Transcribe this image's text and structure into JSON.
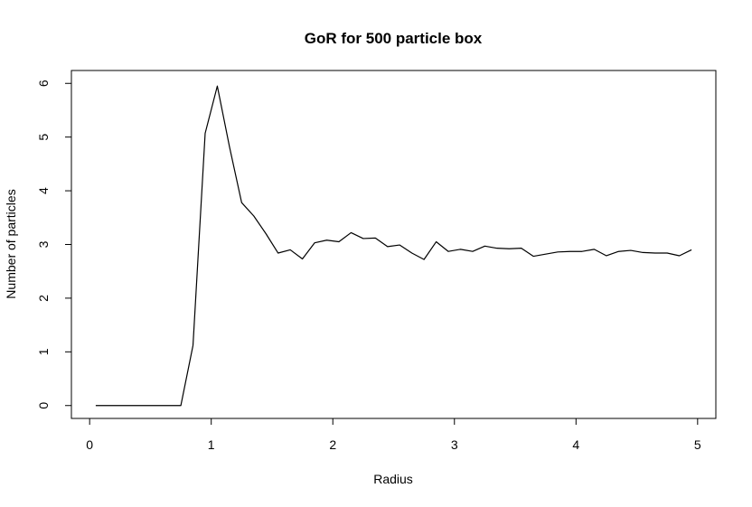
{
  "chart_data": {
    "type": "line",
    "title": "GoR for 500 particle box",
    "xlabel": "Radius",
    "ylabel": "Number of particles",
    "xlim": [
      -0.15,
      5.15
    ],
    "ylim": [
      -0.24,
      6.24
    ],
    "x_ticks": [
      0,
      1,
      2,
      3,
      4,
      5
    ],
    "y_ticks": [
      0,
      1,
      2,
      3,
      4,
      5,
      6
    ],
    "grid": false,
    "legend": "none",
    "line_color": "#000000",
    "x": [
      0.05,
      0.15,
      0.25,
      0.35,
      0.45,
      0.55,
      0.65,
      0.75,
      0.85,
      0.95,
      1.05,
      1.15,
      1.25,
      1.35,
      1.45,
      1.55,
      1.65,
      1.75,
      1.85,
      1.95,
      2.05,
      2.15,
      2.25,
      2.35,
      2.45,
      2.55,
      2.65,
      2.75,
      2.85,
      2.95,
      3.05,
      3.15,
      3.25,
      3.35,
      3.45,
      3.55,
      3.65,
      3.75,
      3.85,
      3.95,
      4.05,
      4.15,
      4.25,
      4.35,
      4.45,
      4.55,
      4.65,
      4.75,
      4.85,
      4.95
    ],
    "y": [
      0,
      0,
      0,
      0,
      0,
      0,
      0,
      0,
      1.12,
      5.07,
      5.95,
      4.82,
      3.78,
      3.53,
      3.2,
      2.84,
      2.9,
      2.73,
      3.03,
      3.08,
      3.05,
      3.22,
      3.11,
      3.12,
      2.96,
      2.99,
      2.84,
      2.72,
      3.05,
      2.87,
      2.91,
      2.87,
      2.97,
      2.93,
      2.92,
      2.93,
      2.78,
      2.82,
      2.86,
      2.87,
      2.87,
      2.91,
      2.79,
      2.87,
      2.89,
      2.85,
      2.84,
      2.84,
      2.79,
      2.9
    ]
  }
}
